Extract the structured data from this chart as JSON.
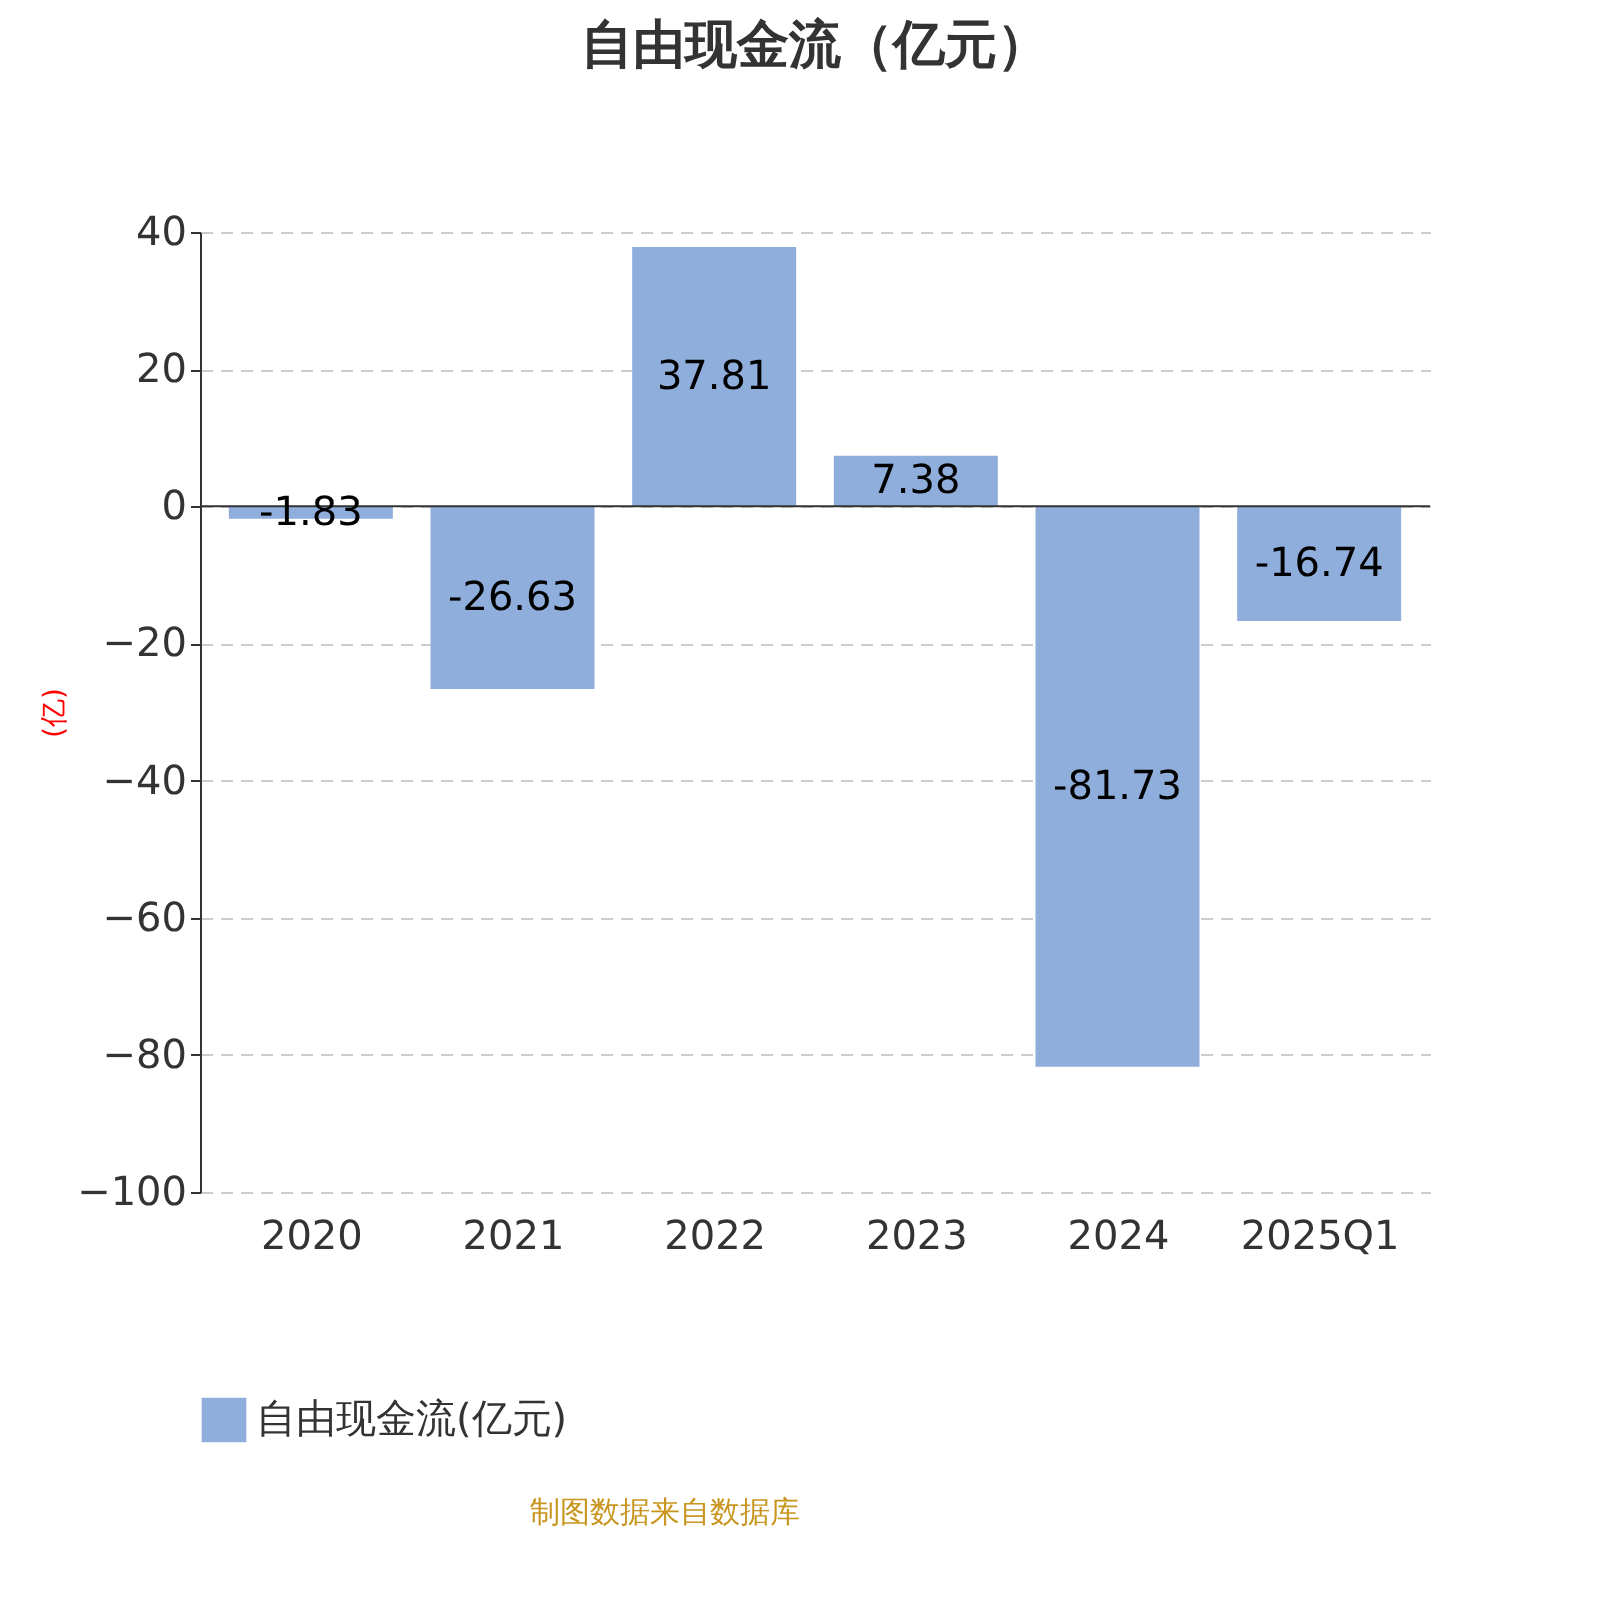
{
  "chart_data": {
    "type": "bar",
    "title": "自由现金流（亿元）",
    "ylabel": "(亿)",
    "categories": [
      "2020",
      "2021",
      "2022",
      "2023",
      "2024",
      "2025Q1"
    ],
    "series": [
      {
        "name": "自由现金流(亿元)",
        "color": "#8faedb",
        "values": [
          -1.83,
          -26.63,
          37.81,
          7.38,
          -81.73,
          -16.74
        ]
      }
    ],
    "ylim": [
      -100,
      40
    ],
    "yticks": [
      -100,
      -80,
      -60,
      -40,
      -20,
      0,
      20,
      40
    ],
    "grid": "y",
    "legend": "bottom",
    "data_labels": true,
    "annotations": [
      "制图数据来自数据库"
    ]
  }
}
